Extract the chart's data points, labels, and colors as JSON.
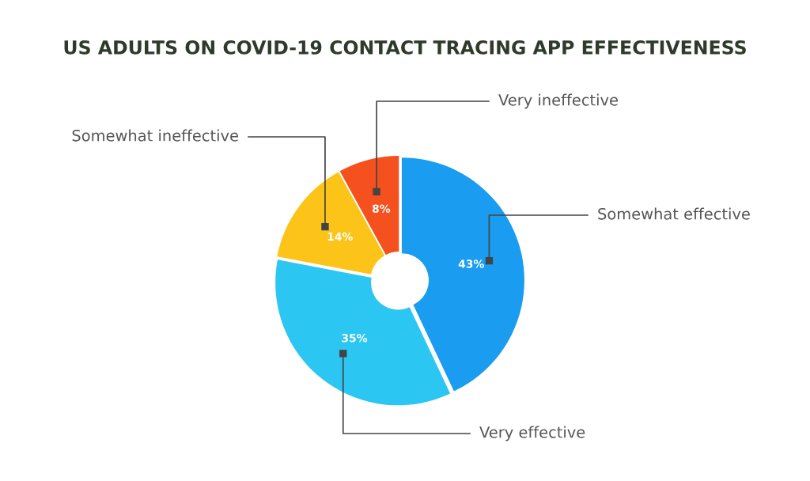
{
  "chart_data": {
    "type": "donut",
    "title": "US ADULTS ON COVID-19 CONTACT TRACING APP EFFECTIVENESS",
    "categories": [
      "Somewhat effective",
      "Very effective",
      "Somewhat ineffective",
      "Very ineffective"
    ],
    "values": [
      43,
      35,
      14,
      8
    ],
    "colors": [
      "#1a9cf0",
      "#2cc6f2",
      "#fcc419",
      "#f4511e"
    ],
    "value_labels": [
      "43%",
      "35%",
      "14%",
      "8%"
    ]
  }
}
